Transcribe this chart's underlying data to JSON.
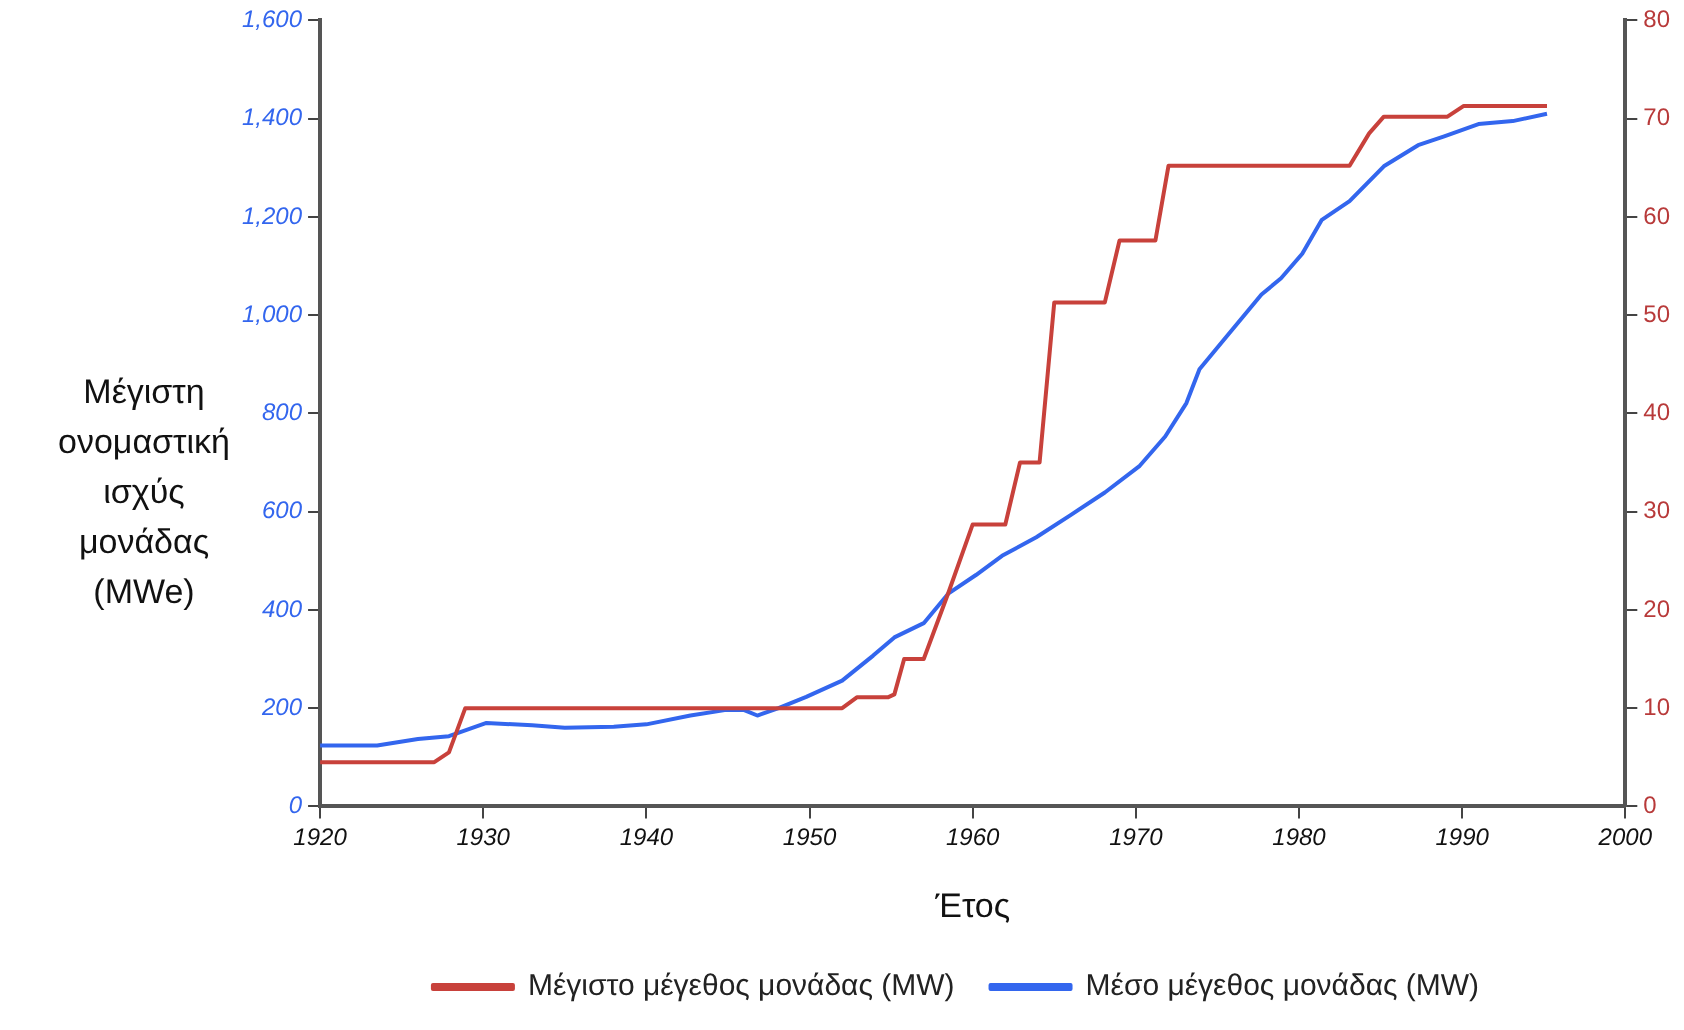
{
  "chart_data": {
    "type": "line",
    "xlabel": "Έτος",
    "ylabel": "Μέγιστη ονομαστική ισχύς μονάδας (MWe)",
    "xlim": [
      1920,
      2000
    ],
    "xticks": [
      1920,
      1930,
      1940,
      1950,
      1960,
      1970,
      1980,
      1990,
      2000
    ],
    "ylim": [
      0,
      1600
    ],
    "yticks": [
      {
        "value": 0,
        "label": "0"
      },
      {
        "value": 200,
        "label": "200"
      },
      {
        "value": 400,
        "label": "400"
      },
      {
        "value": 600,
        "label": "600"
      },
      {
        "value": 800,
        "label": "800"
      },
      {
        "value": 1000,
        "label": "1,000"
      },
      {
        "value": 1200,
        "label": "1,200"
      },
      {
        "value": 1400,
        "label": "1,400"
      },
      {
        "value": 1600,
        "label": "1,600"
      }
    ],
    "y2lim": [
      0,
      80
    ],
    "y2ticks": [
      0,
      10,
      20,
      30,
      40,
      50,
      60,
      70,
      80
    ],
    "legend": "bottom",
    "grid": false,
    "marker": "none",
    "line_style": "solid",
    "series": [
      {
        "name": "Μέγιστο μέγεθος μονάδας (MW)",
        "color": "#c8413b",
        "axis": "y2",
        "x": [
          1920,
          1927,
          1927.9,
          1928.9,
          1952,
          1952.9,
          1954.8,
          1955.2,
          1955.8,
          1957,
          1958.5,
          1960,
          1962,
          1962.9,
          1964.1,
          1965,
          1968.1,
          1969,
          1971.2,
          1972,
          1983.1,
          1984.3,
          1985.2,
          1989.1,
          1990.1,
          1995.2
        ],
        "values": [
          4.5,
          4.5,
          5.5,
          10,
          10,
          11.1,
          11.1,
          11.4,
          15,
          15,
          21.7,
          28.7,
          28.7,
          35,
          35,
          51.3,
          51.3,
          57.6,
          57.6,
          65.2,
          65.2,
          68.5,
          70.2,
          70.2,
          71.3,
          71.3
        ]
      },
      {
        "name": "Μέσο μέγεθος μονάδας (MW)",
        "color": "#3366ee",
        "axis": "y",
        "x": [
          1920,
          1923.5,
          1926,
          1927.9,
          1930.2,
          1933,
          1935,
          1938,
          1940,
          1942.7,
          1944.8,
          1946,
          1946.8,
          1948.1,
          1949.8,
          1952,
          1953.9,
          1955.2,
          1957,
          1958.5,
          1960.2,
          1961.8,
          1963.9,
          1966,
          1968.1,
          1970.2,
          1971.8,
          1973.1,
          1973.9,
          1975.6,
          1977.7,
          1978.9,
          1980.2,
          1981.4,
          1983.1,
          1985.2,
          1987.3,
          1988.9,
          1991,
          1993.1,
          1995.2
        ],
        "values": [
          124,
          124,
          137,
          143,
          170,
          165,
          160,
          162,
          167,
          185,
          196,
          196,
          185,
          200,
          223,
          256,
          307,
          344,
          373,
          433,
          471,
          510,
          548,
          593,
          639,
          692,
          753,
          821,
          890,
          958,
          1042,
          1075,
          1125,
          1194,
          1232,
          1303,
          1346,
          1364,
          1389,
          1395,
          1410
        ]
      }
    ]
  }
}
